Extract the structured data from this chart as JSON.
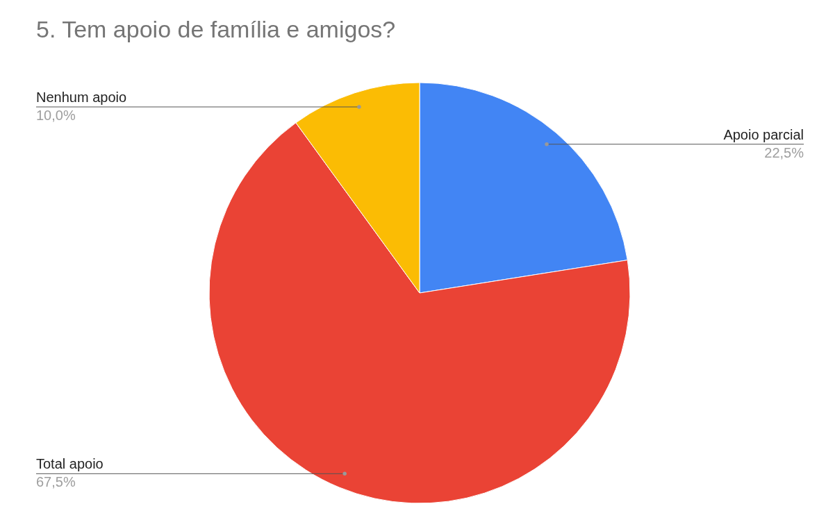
{
  "chart_data": {
    "type": "pie",
    "title": "5. Tem apoio de família e amigos?",
    "categories": [
      "Apoio parcial",
      "Total apoio",
      "Nenhum apoio"
    ],
    "values": [
      22.5,
      67.5,
      10.0
    ],
    "value_labels": [
      "22,5%",
      "67,5%",
      "10,0%"
    ],
    "colors": [
      "#4285f4",
      "#ea4335",
      "#fbbc04"
    ],
    "legend": false
  }
}
